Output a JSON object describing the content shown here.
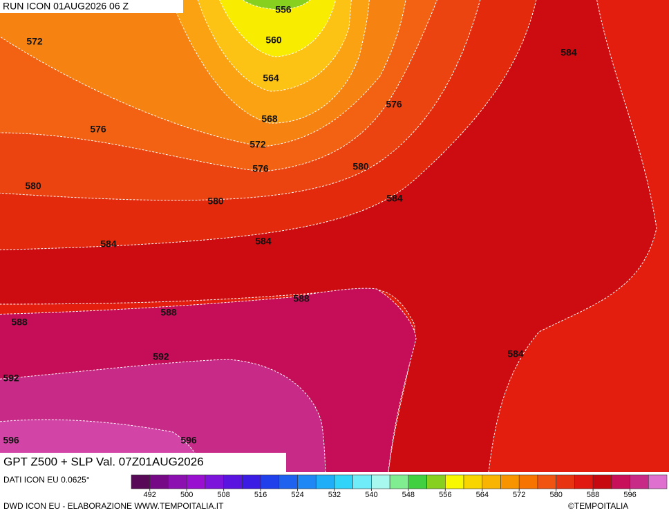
{
  "header": "RUN ICON 01AUG2026 06 Z",
  "map_title": "GPT Z500 + SLP Val. 07Z01AUG2026",
  "source": "DATI ICON EU 0.0625°",
  "credit_left": "DWD ICON EU - ELABORAZIONE WWW.TEMPOITALIA.IT",
  "credit_right": "©TEMPOITALIA",
  "contour_labels": [
    556,
    560,
    564,
    568,
    572,
    572,
    576,
    576,
    576,
    580,
    580,
    580,
    584,
    584,
    584,
    584,
    584,
    588,
    588,
    588,
    592,
    592,
    596,
    596
  ],
  "colorbar": {
    "lim": [
      488,
      604
    ],
    "ticks": [
      492,
      500,
      508,
      516,
      524,
      532,
      540,
      548,
      556,
      564,
      572,
      580,
      588,
      596
    ],
    "colors": [
      "#580a58",
      "#760a86",
      "#8c10b0",
      "#9a10d0",
      "#7c14dc",
      "#5a14e0",
      "#3a1ce4",
      "#2040ec",
      "#2062f0",
      "#2088f4",
      "#20aef8",
      "#30d4f8",
      "#70ecf8",
      "#a8f8f0",
      "#80ee90",
      "#40d040",
      "#88d020",
      "#f8f800",
      "#f8d400",
      "#f8b400",
      "#f89400",
      "#f87400",
      "#f05410",
      "#e83410",
      "#e01810",
      "#c80810",
      "#c8105a",
      "#c82a88",
      "#e070d0"
    ]
  }
}
